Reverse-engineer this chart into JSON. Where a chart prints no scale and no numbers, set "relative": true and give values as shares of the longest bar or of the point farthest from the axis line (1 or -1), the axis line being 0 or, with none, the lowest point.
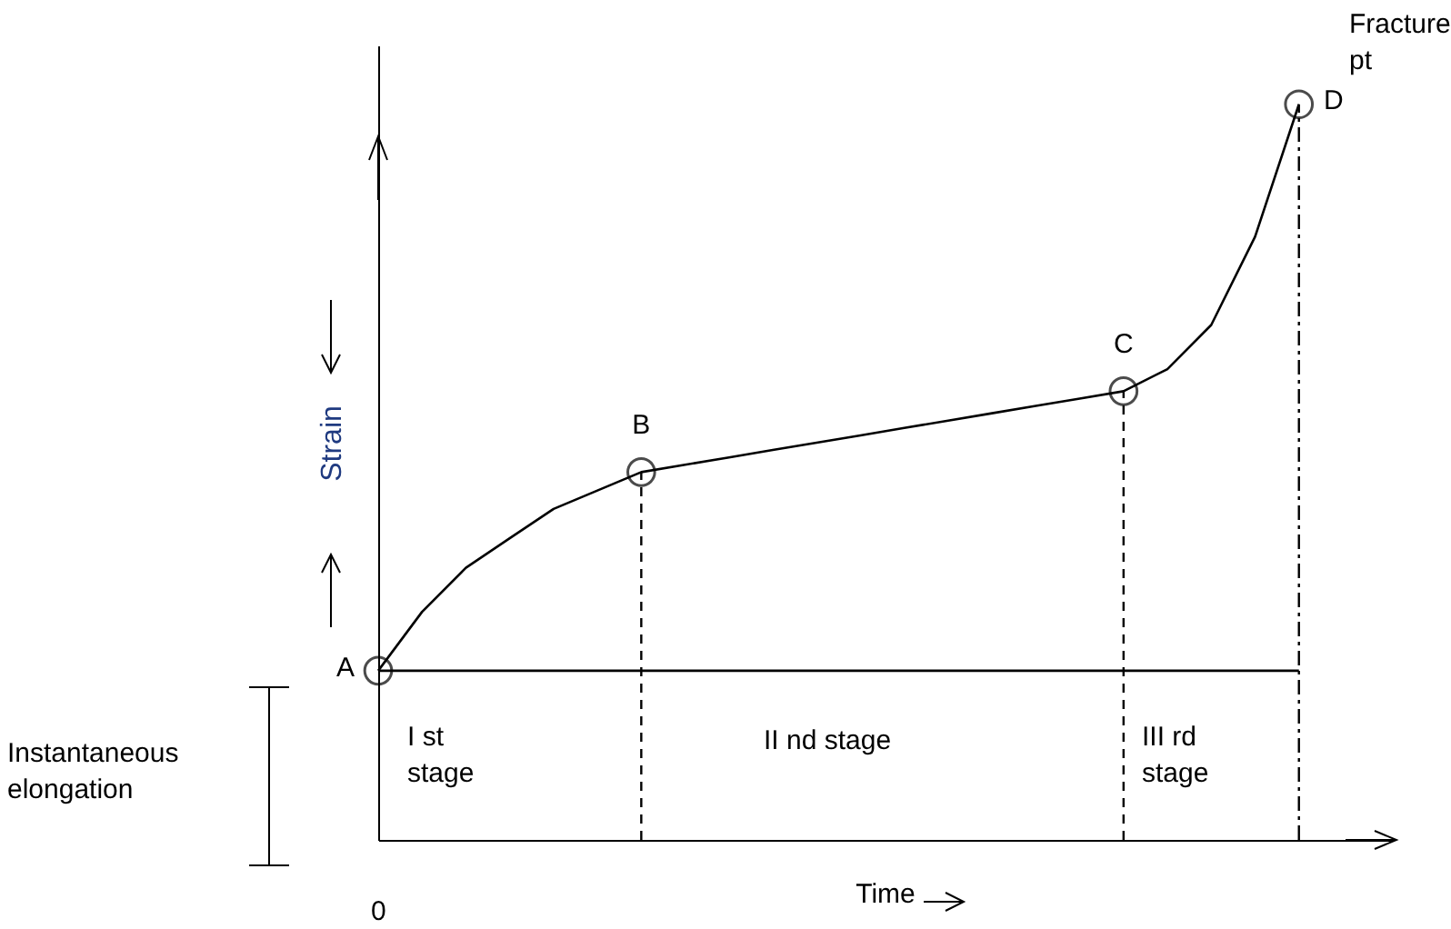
{
  "chart_data": {
    "type": "line",
    "relative": true,
    "xlabel": "Time",
    "ylabel": "Strain",
    "grid": false,
    "marker": "none",
    "categories": [
      null,
      null,
      null,
      null,
      null,
      null,
      null,
      null,
      null,
      null,
      null,
      null,
      null,
      null,
      null,
      null,
      null,
      null,
      null,
      null,
      null,
      null
    ],
    "series": [
      {
        "color": "#000000",
        "values": [
          0.23,
          0.31,
          0.37,
          0.41,
          0.45,
          0.475,
          0.5,
          0.51,
          0.52,
          0.53,
          0.54,
          0.55,
          0.56,
          0.57,
          0.58,
          0.59,
          0.6,
          0.61,
          0.64,
          0.7,
          0.82,
          1.0
        ]
      }
    ],
    "ref_lines": [
      {
        "axis": "y",
        "value": 0.23,
        "color": "#000000",
        "line_style": "solid"
      }
    ],
    "annotations": [
      "A",
      {
        "text": "B",
        "y": 0.5
      },
      {
        "text": "C",
        "y": 0.61
      },
      "D",
      "Fracture pt",
      "I st stage",
      "II nd stage",
      "III rd stage",
      "Instantaneous elongation",
      "0"
    ]
  }
}
